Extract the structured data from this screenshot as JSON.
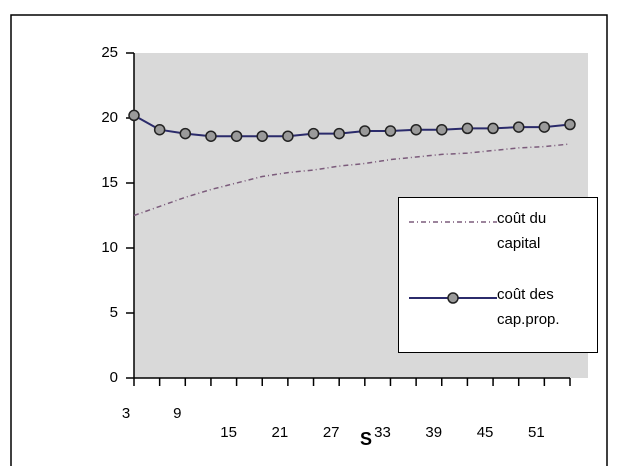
{
  "chart_data": {
    "type": "line",
    "x_label": "S",
    "x": [
      3,
      6,
      9,
      12,
      15,
      18,
      21,
      24,
      27,
      30,
      33,
      36,
      39,
      42,
      45,
      48,
      51,
      54
    ],
    "xlim": [
      3,
      54
    ],
    "xticks": [
      3,
      9,
      15,
      21,
      27,
      33,
      39,
      45,
      51
    ],
    "ylim": [
      0,
      25
    ],
    "yticks": [
      0,
      5,
      10,
      15,
      20,
      25
    ],
    "legend_position": "right",
    "series": [
      {
        "name": "coût du capital",
        "color": "#7b5b7b",
        "dashed": true,
        "markers": false,
        "values": [
          12.5,
          13.2,
          13.9,
          14.5,
          15.0,
          15.5,
          15.8,
          16.0,
          16.3,
          16.5,
          16.8,
          17.0,
          17.2,
          17.3,
          17.5,
          17.7,
          17.8,
          18.0
        ]
      },
      {
        "name": "coût des cap.prop.",
        "color": "#2b2b6b",
        "dashed": false,
        "markers": true,
        "values": [
          20.2,
          19.1,
          18.8,
          18.6,
          18.6,
          18.6,
          18.6,
          18.8,
          18.8,
          19.0,
          19.0,
          19.1,
          19.1,
          19.2,
          19.2,
          19.3,
          19.3,
          19.5
        ]
      }
    ]
  }
}
